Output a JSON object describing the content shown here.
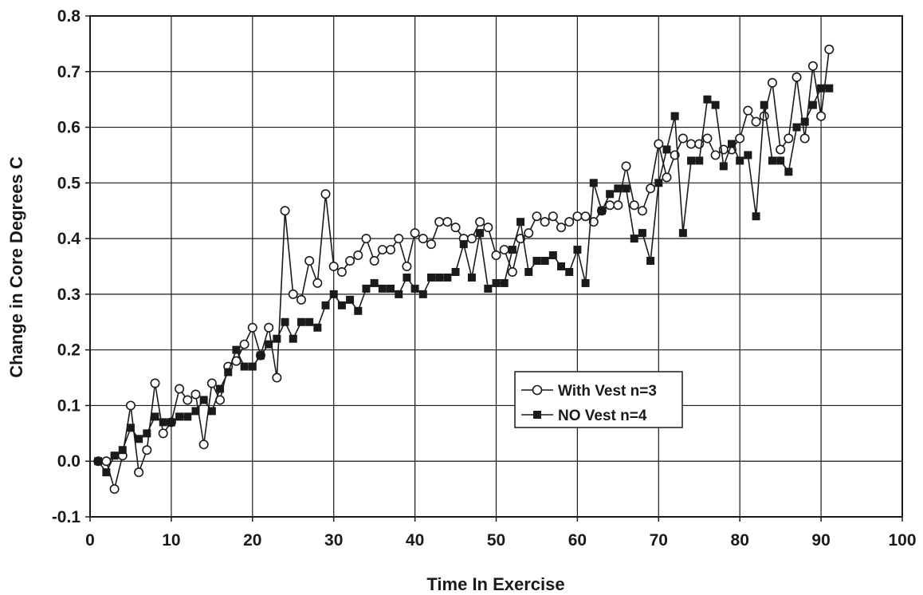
{
  "chart_data": {
    "type": "line",
    "title": "",
    "xlabel": "Time In Exercise",
    "ylabel": "Change in Core Degrees C",
    "xlim": [
      0,
      100
    ],
    "ylim": [
      -0.1,
      0.8
    ],
    "x_ticks": [
      "0",
      "10",
      "20",
      "30",
      "40",
      "50",
      "60",
      "70",
      "80",
      "90",
      "100"
    ],
    "y_ticks": [
      "-0.1",
      "0.0",
      "0.1",
      "0.2",
      "0.3",
      "0.4",
      "0.5",
      "0.6",
      "0.7",
      "0.8"
    ],
    "grid": true,
    "legend_position": "center-right",
    "series": [
      {
        "name": "With Vest n=3",
        "marker": "open-circle",
        "color": "#1a1a1a",
        "x": [
          1,
          2,
          3,
          4,
          5,
          6,
          7,
          8,
          9,
          10,
          11,
          12,
          13,
          14,
          15,
          16,
          17,
          18,
          19,
          20,
          21,
          22,
          23,
          24,
          25,
          26,
          27,
          28,
          29,
          30,
          31,
          32,
          33,
          34,
          35,
          36,
          37,
          38,
          39,
          40,
          41,
          42,
          43,
          44,
          45,
          46,
          47,
          48,
          49,
          50,
          51,
          52,
          53,
          54,
          55,
          56,
          57,
          58,
          59,
          60,
          61,
          62,
          63,
          64,
          65,
          66,
          67,
          68,
          69,
          70,
          71,
          72,
          73,
          74,
          75,
          76,
          77,
          78,
          79,
          80,
          81,
          82,
          83,
          84,
          85,
          86,
          87,
          88,
          89,
          90,
          91
        ],
        "values": [
          0.0,
          0.0,
          -0.05,
          0.01,
          0.1,
          -0.02,
          0.02,
          0.14,
          0.05,
          0.07,
          0.13,
          0.11,
          0.12,
          0.03,
          0.14,
          0.11,
          0.17,
          0.18,
          0.21,
          0.24,
          0.19,
          0.24,
          0.15,
          0.45,
          0.3,
          0.29,
          0.36,
          0.32,
          0.48,
          0.35,
          0.34,
          0.36,
          0.37,
          0.4,
          0.36,
          0.38,
          0.38,
          0.4,
          0.35,
          0.41,
          0.4,
          0.39,
          0.43,
          0.43,
          0.42,
          0.4,
          0.4,
          0.43,
          0.42,
          0.37,
          0.38,
          0.34,
          0.4,
          0.41,
          0.44,
          0.43,
          0.44,
          0.42,
          0.43,
          0.44,
          0.44,
          0.43,
          0.45,
          0.46,
          0.46,
          0.53,
          0.46,
          0.45,
          0.49,
          0.57,
          0.51,
          0.55,
          0.58,
          0.57,
          0.57,
          0.58,
          0.55,
          0.56,
          0.56,
          0.58,
          0.63,
          0.61,
          0.62,
          0.68,
          0.56,
          0.58,
          0.69,
          0.58,
          0.71,
          0.62,
          0.74
        ]
      },
      {
        "name": "NO Vest n=4",
        "marker": "filled-square",
        "color": "#1a1a1a",
        "x": [
          1,
          2,
          3,
          4,
          5,
          6,
          7,
          8,
          9,
          10,
          11,
          12,
          13,
          14,
          15,
          16,
          17,
          18,
          19,
          20,
          21,
          22,
          23,
          24,
          25,
          26,
          27,
          28,
          29,
          30,
          31,
          32,
          33,
          34,
          35,
          36,
          37,
          38,
          39,
          40,
          41,
          42,
          43,
          44,
          45,
          46,
          47,
          48,
          49,
          50,
          51,
          52,
          53,
          54,
          55,
          56,
          57,
          58,
          59,
          60,
          61,
          62,
          63,
          64,
          65,
          66,
          67,
          68,
          69,
          70,
          71,
          72,
          73,
          74,
          75,
          76,
          77,
          78,
          79,
          80,
          81,
          82,
          83,
          84,
          85,
          86,
          87,
          88,
          89,
          90,
          91
        ],
        "values": [
          0.0,
          -0.02,
          0.01,
          0.02,
          0.06,
          0.04,
          0.05,
          0.08,
          0.07,
          0.07,
          0.08,
          0.08,
          0.09,
          0.11,
          0.09,
          0.13,
          0.16,
          0.2,
          0.17,
          0.17,
          0.19,
          0.21,
          0.22,
          0.25,
          0.22,
          0.25,
          0.25,
          0.24,
          0.28,
          0.3,
          0.28,
          0.29,
          0.27,
          0.31,
          0.32,
          0.31,
          0.31,
          0.3,
          0.33,
          0.31,
          0.3,
          0.33,
          0.33,
          0.33,
          0.34,
          0.39,
          0.33,
          0.41,
          0.31,
          0.32,
          0.32,
          0.38,
          0.43,
          0.34,
          0.36,
          0.36,
          0.37,
          0.35,
          0.34,
          0.38,
          0.32,
          0.5,
          0.45,
          0.48,
          0.49,
          0.49,
          0.4,
          0.41,
          0.36,
          0.5,
          0.56,
          0.62,
          0.41,
          0.54,
          0.54,
          0.65,
          0.64,
          0.53,
          0.57,
          0.54,
          0.55,
          0.44,
          0.64,
          0.54,
          0.54,
          0.52,
          0.6,
          0.61,
          0.64,
          0.67,
          0.67
        ]
      }
    ]
  }
}
